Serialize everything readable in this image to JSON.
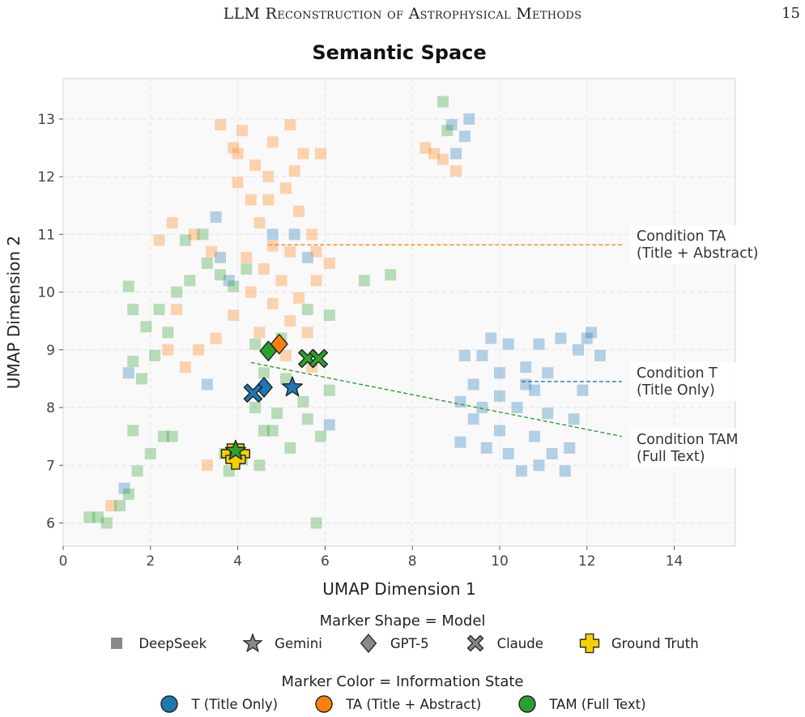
{
  "header": {
    "running_title": "LLM Reconstruction of Astrophysical Methods",
    "page_number": "15"
  },
  "chart_data": {
    "type": "scatter",
    "title": "Semantic Space",
    "xlabel": "UMAP Dimension 1",
    "ylabel": "UMAP Dimension 2",
    "xlim": [
      0,
      15.4
    ],
    "ylim": [
      5.6,
      13.7
    ],
    "xticks": [
      0,
      2,
      4,
      6,
      8,
      10,
      12,
      14
    ],
    "yticks": [
      6,
      7,
      8,
      9,
      10,
      11,
      12,
      13
    ],
    "grid": true,
    "colors": {
      "T": "#1f77b4",
      "TA": "#ff7f0e",
      "TAM": "#2ca02c",
      "ground_truth": "#f5d000"
    },
    "clusters": [
      {
        "name": "DeepSeek",
        "state": "T",
        "points": [
          [
            9.2,
            8.9
          ],
          [
            9.4,
            8.4
          ],
          [
            9.6,
            8.9
          ],
          [
            9.8,
            9.2
          ],
          [
            10.0,
            8.6
          ],
          [
            10.2,
            9.1
          ],
          [
            10.6,
            8.7
          ],
          [
            10.9,
            9.1
          ],
          [
            11.1,
            8.6
          ],
          [
            11.4,
            9.2
          ],
          [
            11.8,
            9.0
          ],
          [
            12.1,
            9.3
          ],
          [
            12.3,
            8.9
          ],
          [
            11.9,
            8.3
          ],
          [
            11.7,
            7.8
          ],
          [
            11.6,
            7.3
          ],
          [
            11.2,
            7.2
          ],
          [
            10.8,
            7.5
          ],
          [
            10.5,
            6.9
          ],
          [
            10.2,
            7.2
          ],
          [
            10.0,
            7.6
          ],
          [
            9.7,
            7.3
          ],
          [
            9.4,
            7.8
          ],
          [
            9.1,
            8.1
          ],
          [
            10.4,
            8.0
          ],
          [
            10.8,
            8.3
          ],
          [
            11.1,
            7.9
          ],
          [
            10.0,
            8.2
          ],
          [
            9.6,
            8.0
          ],
          [
            10.9,
            7.0
          ],
          [
            11.5,
            6.9
          ],
          [
            12.0,
            9.2
          ],
          [
            9.3,
            13.0
          ],
          [
            9.2,
            12.7
          ],
          [
            9.0,
            12.4
          ],
          [
            8.9,
            12.9
          ],
          [
            6.1,
            7.7
          ],
          [
            4.8,
            11.0
          ],
          [
            5.3,
            11.0
          ],
          [
            3.6,
            10.6
          ],
          [
            3.8,
            10.2
          ],
          [
            3.3,
            8.4
          ],
          [
            1.5,
            8.6
          ],
          [
            1.4,
            6.6
          ],
          [
            3.5,
            11.3
          ],
          [
            5.6,
            10.6
          ],
          [
            9.1,
            7.4
          ],
          [
            10.6,
            8.4
          ]
        ]
      },
      {
        "name": "DeepSeek",
        "state": "TA",
        "points": [
          [
            3.6,
            12.9
          ],
          [
            3.9,
            12.5
          ],
          [
            4.1,
            12.8
          ],
          [
            4.4,
            12.2
          ],
          [
            4.8,
            12.6
          ],
          [
            5.2,
            12.9
          ],
          [
            5.5,
            12.4
          ],
          [
            5.9,
            12.4
          ],
          [
            4.0,
            11.9
          ],
          [
            4.3,
            11.6
          ],
          [
            4.7,
            11.6
          ],
          [
            5.1,
            11.8
          ],
          [
            5.4,
            11.4
          ],
          [
            5.7,
            11.0
          ],
          [
            4.5,
            11.2
          ],
          [
            4.8,
            10.8
          ],
          [
            5.2,
            10.7
          ],
          [
            5.8,
            10.7
          ],
          [
            4.2,
            10.6
          ],
          [
            4.6,
            10.4
          ],
          [
            5.0,
            10.2
          ],
          [
            5.4,
            9.9
          ],
          [
            5.8,
            10.2
          ],
          [
            6.1,
            10.5
          ],
          [
            4.3,
            10.0
          ],
          [
            4.8,
            9.8
          ],
          [
            5.2,
            9.5
          ],
          [
            5.6,
            9.3
          ],
          [
            3.9,
            9.6
          ],
          [
            3.5,
            9.2
          ],
          [
            3.1,
            9.0
          ],
          [
            2.8,
            8.7
          ],
          [
            2.4,
            9.0
          ],
          [
            2.6,
            9.7
          ],
          [
            2.2,
            10.9
          ],
          [
            2.5,
            11.2
          ],
          [
            3.0,
            11.0
          ],
          [
            3.4,
            10.7
          ],
          [
            1.1,
            6.3
          ],
          [
            3.3,
            7.0
          ],
          [
            8.5,
            12.4
          ],
          [
            8.7,
            12.3
          ],
          [
            9.0,
            12.1
          ],
          [
            8.3,
            12.5
          ],
          [
            5.7,
            8.7
          ],
          [
            4.5,
            9.3
          ],
          [
            5.1,
            8.9
          ],
          [
            4.7,
            12.0
          ],
          [
            4.0,
            12.4
          ],
          [
            5.3,
            12.1
          ]
        ]
      },
      {
        "name": "DeepSeek",
        "state": "TAM",
        "points": [
          [
            0.6,
            6.1
          ],
          [
            0.8,
            6.1
          ],
          [
            1.0,
            6.0
          ],
          [
            1.3,
            6.3
          ],
          [
            1.5,
            6.5
          ],
          [
            1.7,
            6.9
          ],
          [
            2.0,
            7.2
          ],
          [
            2.3,
            7.5
          ],
          [
            2.5,
            7.5
          ],
          [
            1.6,
            7.6
          ],
          [
            1.6,
            8.8
          ],
          [
            1.8,
            8.5
          ],
          [
            2.1,
            8.9
          ],
          [
            2.4,
            9.3
          ],
          [
            1.6,
            9.7
          ],
          [
            1.5,
            10.1
          ],
          [
            1.9,
            9.4
          ],
          [
            2.2,
            9.7
          ],
          [
            2.6,
            10.0
          ],
          [
            2.9,
            10.2
          ],
          [
            3.3,
            10.5
          ],
          [
            3.6,
            10.3
          ],
          [
            3.9,
            10.1
          ],
          [
            4.2,
            10.4
          ],
          [
            2.8,
            10.9
          ],
          [
            3.2,
            11.0
          ],
          [
            8.7,
            13.3
          ],
          [
            8.8,
            12.8
          ],
          [
            7.5,
            10.3
          ],
          [
            6.9,
            10.2
          ],
          [
            6.1,
            9.6
          ],
          [
            5.6,
            9.7
          ],
          [
            5.0,
            9.2
          ],
          [
            4.4,
            9.1
          ],
          [
            4.6,
            8.6
          ],
          [
            4.4,
            8.0
          ],
          [
            4.8,
            7.6
          ],
          [
            5.2,
            7.3
          ],
          [
            5.6,
            7.8
          ],
          [
            5.9,
            7.5
          ],
          [
            6.1,
            8.3
          ],
          [
            5.5,
            8.1
          ],
          [
            4.5,
            7.0
          ],
          [
            4.1,
            7.1
          ],
          [
            3.8,
            6.9
          ],
          [
            5.8,
            6.0
          ],
          [
            4.6,
            7.6
          ],
          [
            5.1,
            8.5
          ],
          [
            4.9,
            7.9
          ],
          [
            3.7,
            7.2
          ]
        ]
      }
    ],
    "markers": [
      {
        "name": "Gemini",
        "state": "T",
        "x": 5.25,
        "y": 8.35
      },
      {
        "name": "GPT-5",
        "state": "T",
        "x": 4.6,
        "y": 8.35
      },
      {
        "name": "Claude",
        "state": "T",
        "x": 4.35,
        "y": 8.25
      },
      {
        "name": "GPT-5",
        "state": "TA",
        "x": 4.95,
        "y": 9.1
      },
      {
        "name": "GPT-5",
        "state": "TAM",
        "x": 4.7,
        "y": 8.98
      },
      {
        "name": "Claude",
        "state": "TAM",
        "x": 5.6,
        "y": 8.85
      },
      {
        "name": "Claude",
        "state": "TAM",
        "x": 5.85,
        "y": 8.85
      },
      {
        "name": "Ground Truth",
        "state": "TA",
        "x": 3.85,
        "y": 7.2
      },
      {
        "name": "Ground Truth",
        "state": "TAM",
        "x": 4.05,
        "y": 7.2
      },
      {
        "name": "Ground Truth",
        "state": "T",
        "x": 3.95,
        "y": 7.1
      },
      {
        "name": "Gemini",
        "state": "TAM",
        "x": 3.95,
        "y": 7.25
      }
    ],
    "annotations": [
      {
        "state": "TA",
        "line": [
          [
            4.7,
            10.82
          ],
          [
            12.8,
            10.82
          ]
        ],
        "label_x": 13.1,
        "label_y": 10.82,
        "lines": [
          "Condition TA",
          "(Title + Abstract)"
        ]
      },
      {
        "state": "T",
        "line": [
          [
            10.5,
            8.45
          ],
          [
            12.8,
            8.45
          ]
        ],
        "label_x": 13.1,
        "label_y": 8.45,
        "lines": [
          "Condition T",
          "(Title Only)"
        ]
      },
      {
        "state": "TAM",
        "line": [
          [
            4.3,
            8.78
          ],
          [
            12.8,
            7.5
          ]
        ],
        "label_x": 13.1,
        "label_y": 7.3,
        "lines": [
          "Condition TAM",
          "(Full Text)"
        ]
      }
    ],
    "legend_shape": {
      "title": "Marker Shape = Model",
      "items": [
        {
          "label": "DeepSeek",
          "icon": "square-icon"
        },
        {
          "label": "Gemini",
          "icon": "star-icon"
        },
        {
          "label": "GPT-5",
          "icon": "diamond-icon"
        },
        {
          "label": "Claude",
          "icon": "x-icon"
        },
        {
          "label": "Ground Truth",
          "icon": "plus-icon"
        }
      ]
    },
    "legend_color": {
      "title": "Marker Color = Information State",
      "items": [
        {
          "label": "T (Title Only)",
          "color": "#1f77b4"
        },
        {
          "label": "TA (Title + Abstract)",
          "color": "#ff7f0e"
        },
        {
          "label": "TAM (Full Text)",
          "color": "#2ca02c"
        }
      ]
    }
  }
}
